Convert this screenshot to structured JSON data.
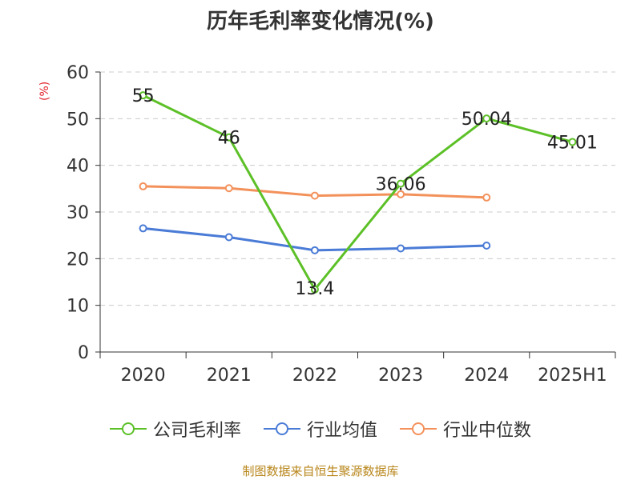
{
  "chart_data": {
    "type": "line",
    "title": "历年毛利率变化情况(%)",
    "ylabel": "(%)",
    "xlabel": "",
    "categories": [
      "2020",
      "2021",
      "2022",
      "2023",
      "2024",
      "2025H1"
    ],
    "ylim": [
      0,
      60
    ],
    "yticks": [
      "0",
      "10",
      "20",
      "30",
      "40",
      "50",
      "60"
    ],
    "grid": true,
    "legend_position": "bottom",
    "series": [
      {
        "name": "公司毛利率",
        "color": "#5cc027",
        "values": [
          55,
          46,
          13.4,
          36.06,
          50.04,
          45.01
        ],
        "labels": [
          "55",
          "46",
          "13.4",
          "36.06",
          "50.04",
          "45.01"
        ]
      },
      {
        "name": "行业均值",
        "color": "#4a7bd6",
        "values": [
          26.5,
          24.6,
          21.8,
          22.2,
          22.8,
          null
        ]
      },
      {
        "name": "行业中位数",
        "color": "#f3915b",
        "values": [
          35.5,
          35.1,
          33.5,
          33.8,
          33.1,
          null
        ]
      }
    ]
  },
  "source": "制图数据来自恒生聚源数据库"
}
